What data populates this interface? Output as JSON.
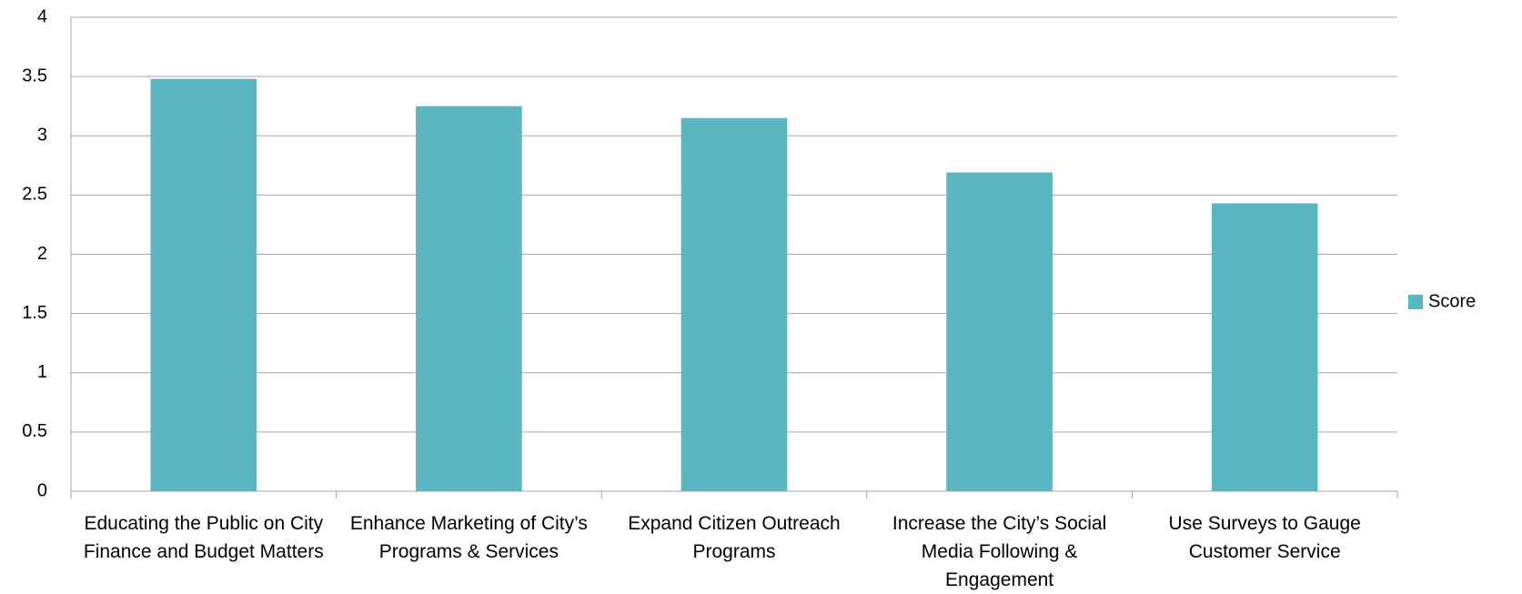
{
  "chart_data": {
    "type": "bar",
    "categories": [
      "Educating the Public on City Finance and Budget Matters",
      "Enhance Marketing of City’s Programs & Services",
      "Expand Citizen Outreach Programs",
      "Increase the City’s Social Media Following & Engagement",
      "Use Surveys to Gauge Customer Service"
    ],
    "series": [
      {
        "name": "Score",
        "color": "#5ab6c0",
        "values": [
          3.48,
          3.25,
          3.15,
          2.69,
          2.43
        ]
      }
    ],
    "ylim": [
      0,
      4
    ],
    "yticks": [
      0,
      0.5,
      1,
      1.5,
      2,
      2.5,
      3,
      3.5,
      4
    ],
    "grid": true,
    "legend": "right"
  }
}
